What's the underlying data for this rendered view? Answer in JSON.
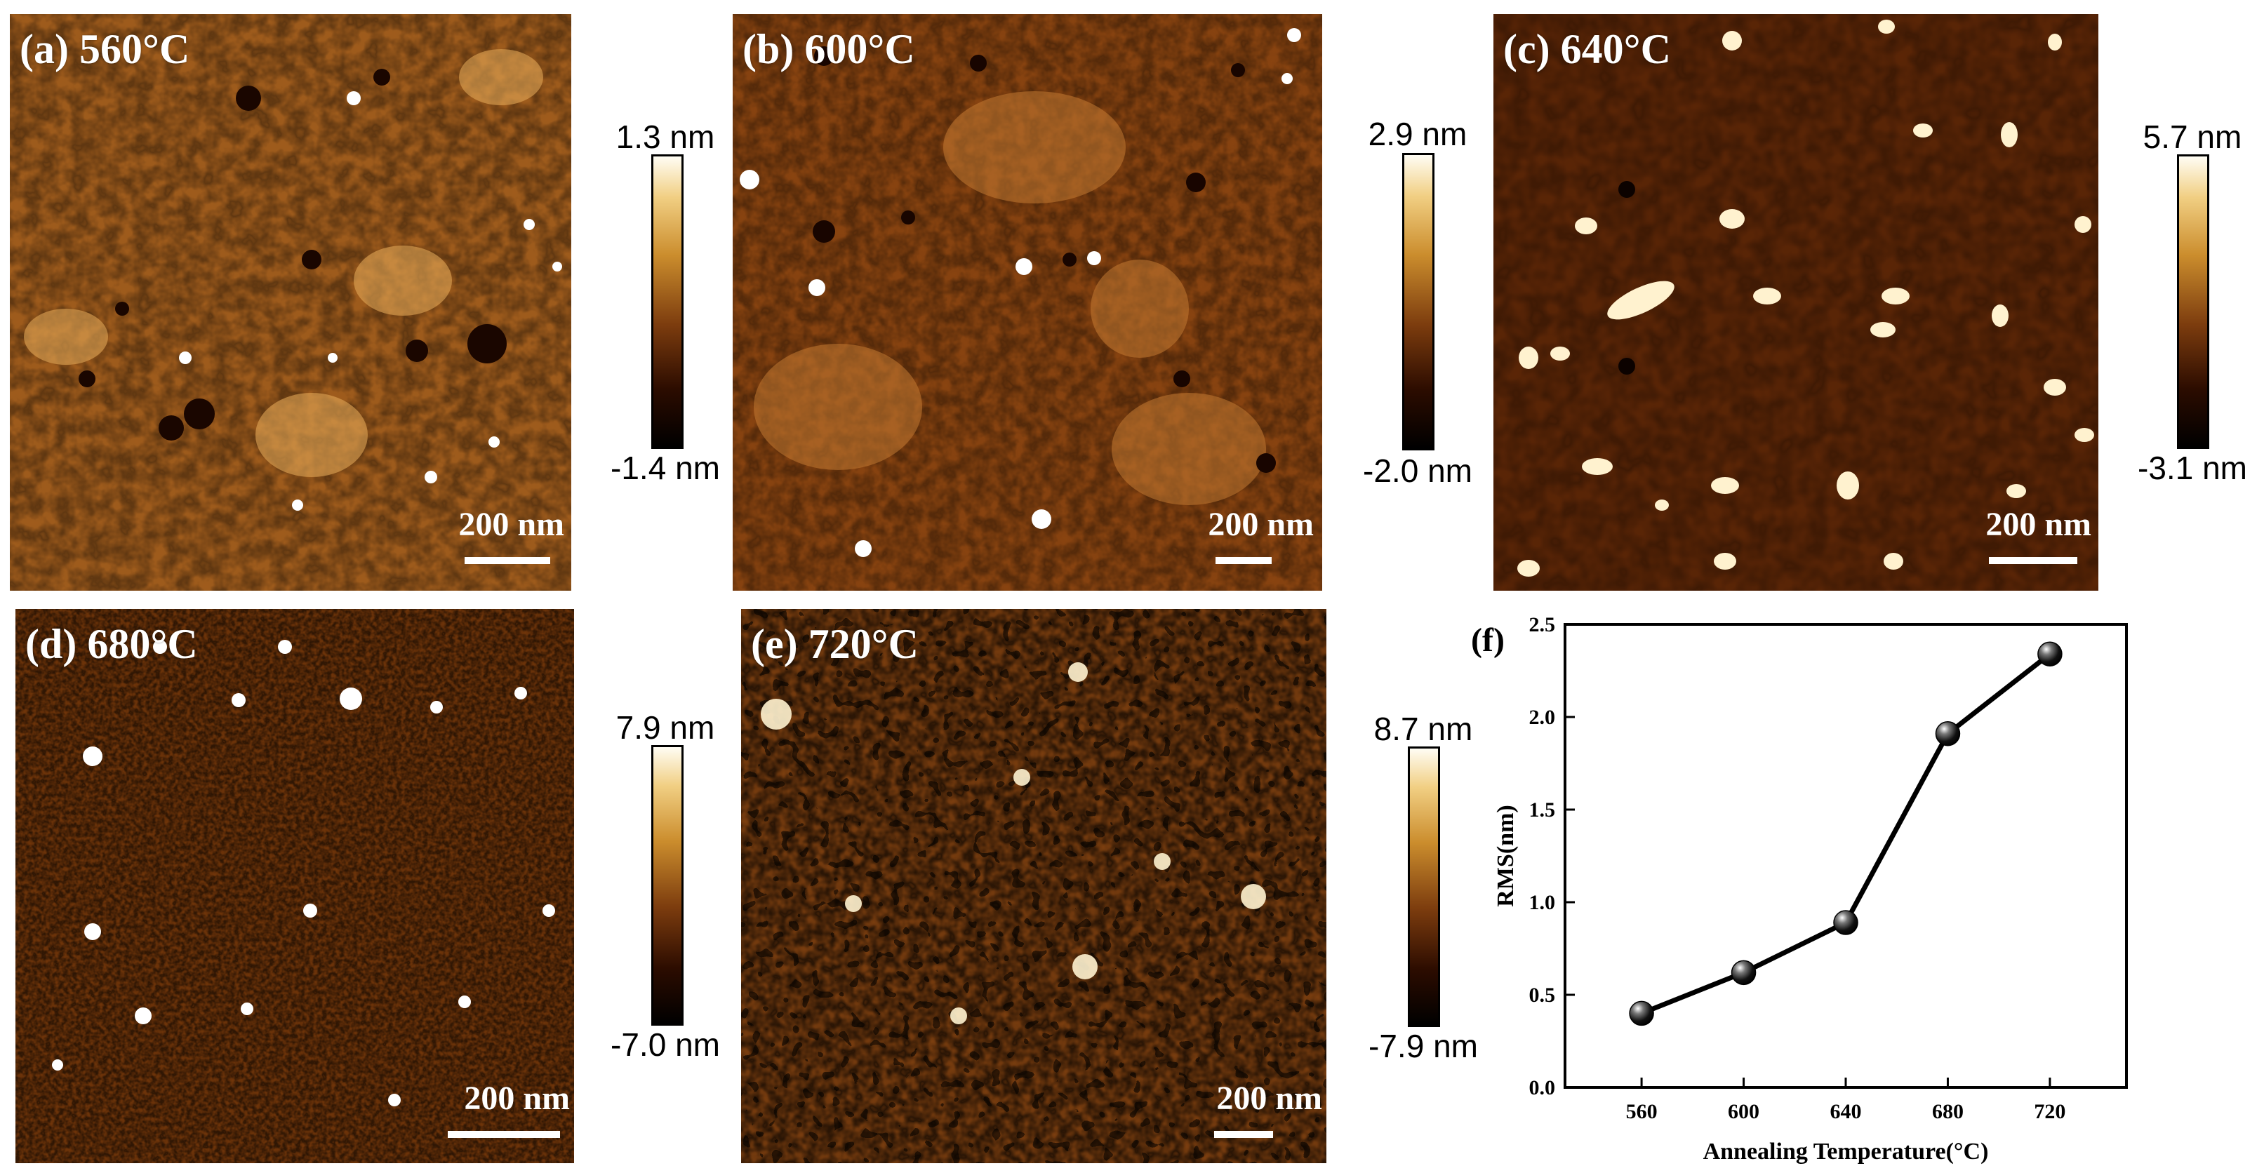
{
  "panels": [
    {
      "id": "a",
      "label": "(a) 560°C",
      "scalebar": "200 nm",
      "colorbar_max": "1.3 nm",
      "colorbar_min": "-1.4 nm"
    },
    {
      "id": "b",
      "label": "(b) 600°C",
      "scalebar": "200 nm",
      "colorbar_max": "2.9 nm",
      "colorbar_min": "-2.0 nm"
    },
    {
      "id": "c",
      "label": "(c) 640°C",
      "scalebar": "200 nm",
      "colorbar_max": "5.7 nm",
      "colorbar_min": "-3.1 nm"
    },
    {
      "id": "d",
      "label": "(d) 680°C",
      "scalebar": "200 nm",
      "colorbar_max": "7.9 nm",
      "colorbar_min": "-7.0 nm"
    },
    {
      "id": "e",
      "label": "(e) 720°C",
      "scalebar": "200 nm",
      "colorbar_max": "8.7 nm",
      "colorbar_min": "-7.9 nm"
    }
  ],
  "colors": {
    "afm_dark": "#000000",
    "afm_mid": "#9a5514",
    "afm_light": "#fffdf4",
    "line": "#000000"
  },
  "chart_data": {
    "type": "line",
    "panel_label": "(f)",
    "x": [
      560,
      600,
      640,
      680,
      720
    ],
    "series": [
      {
        "values": [
          0.4,
          0.62,
          0.89,
          1.91,
          2.34
        ]
      }
    ],
    "xlabel": "Annealing Temperature(°C)",
    "ylabel": "RMS(nm)",
    "xticks": [
      "560",
      "600",
      "640",
      "680",
      "720"
    ],
    "yticks": [
      "0.0",
      "0.5",
      "1.0",
      "1.5",
      "2.0",
      "2.5"
    ],
    "xlim": [
      530,
      750
    ],
    "ylim": [
      0,
      2.5
    ],
    "marker": "black-sphere",
    "grid": false
  }
}
